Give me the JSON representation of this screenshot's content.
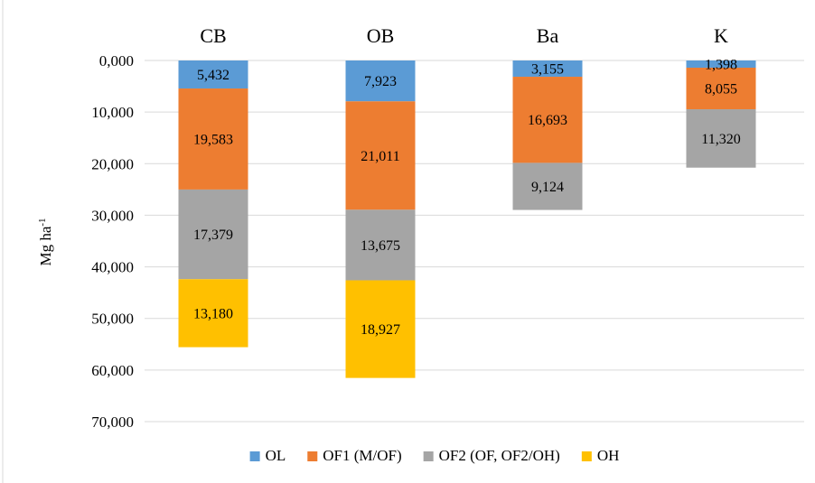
{
  "chart_data": {
    "type": "bar",
    "stacked": true,
    "y_reversed": true,
    "categories": [
      "CB",
      "OB",
      "Ba",
      "K"
    ],
    "category_axis_position": "top",
    "series": [
      {
        "name": "OL",
        "color": "#5b9bd5",
        "values": [
          5.432,
          7.923,
          3.155,
          1.398
        ],
        "labels": [
          "5,432",
          "7,923",
          "3,155",
          "1,398"
        ]
      },
      {
        "name": "OF1 (M/OF)",
        "color": "#ed7d31",
        "values": [
          19.583,
          21.011,
          16.693,
          8.055
        ],
        "labels": [
          "19,583",
          "21,011",
          "16,693",
          "8,055"
        ]
      },
      {
        "name": "OF2 (OF, OF2/OH)",
        "color": "#a5a5a5",
        "values": [
          17.379,
          13.675,
          9.124,
          11.32
        ],
        "labels": [
          "17,379",
          "13,675",
          "9,124",
          "11,320"
        ]
      },
      {
        "name": "OH",
        "color": "#ffc000",
        "values": [
          13.18,
          18.927,
          null,
          null
        ],
        "labels": [
          "13,180",
          "18,927",
          "",
          ""
        ]
      }
    ],
    "ylim": [
      0,
      70
    ],
    "yticks": [
      0,
      10,
      20,
      30,
      40,
      50,
      60,
      70
    ],
    "ytick_labels": [
      "0,000",
      "10,000",
      "20,000",
      "30,000",
      "40,000",
      "50,000",
      "60,000",
      "70,000"
    ],
    "ylabel": "Mg  ha",
    "ylabel_superscript": "-1",
    "xlabel": "",
    "title": "",
    "grid": true,
    "legend_position": "bottom"
  }
}
